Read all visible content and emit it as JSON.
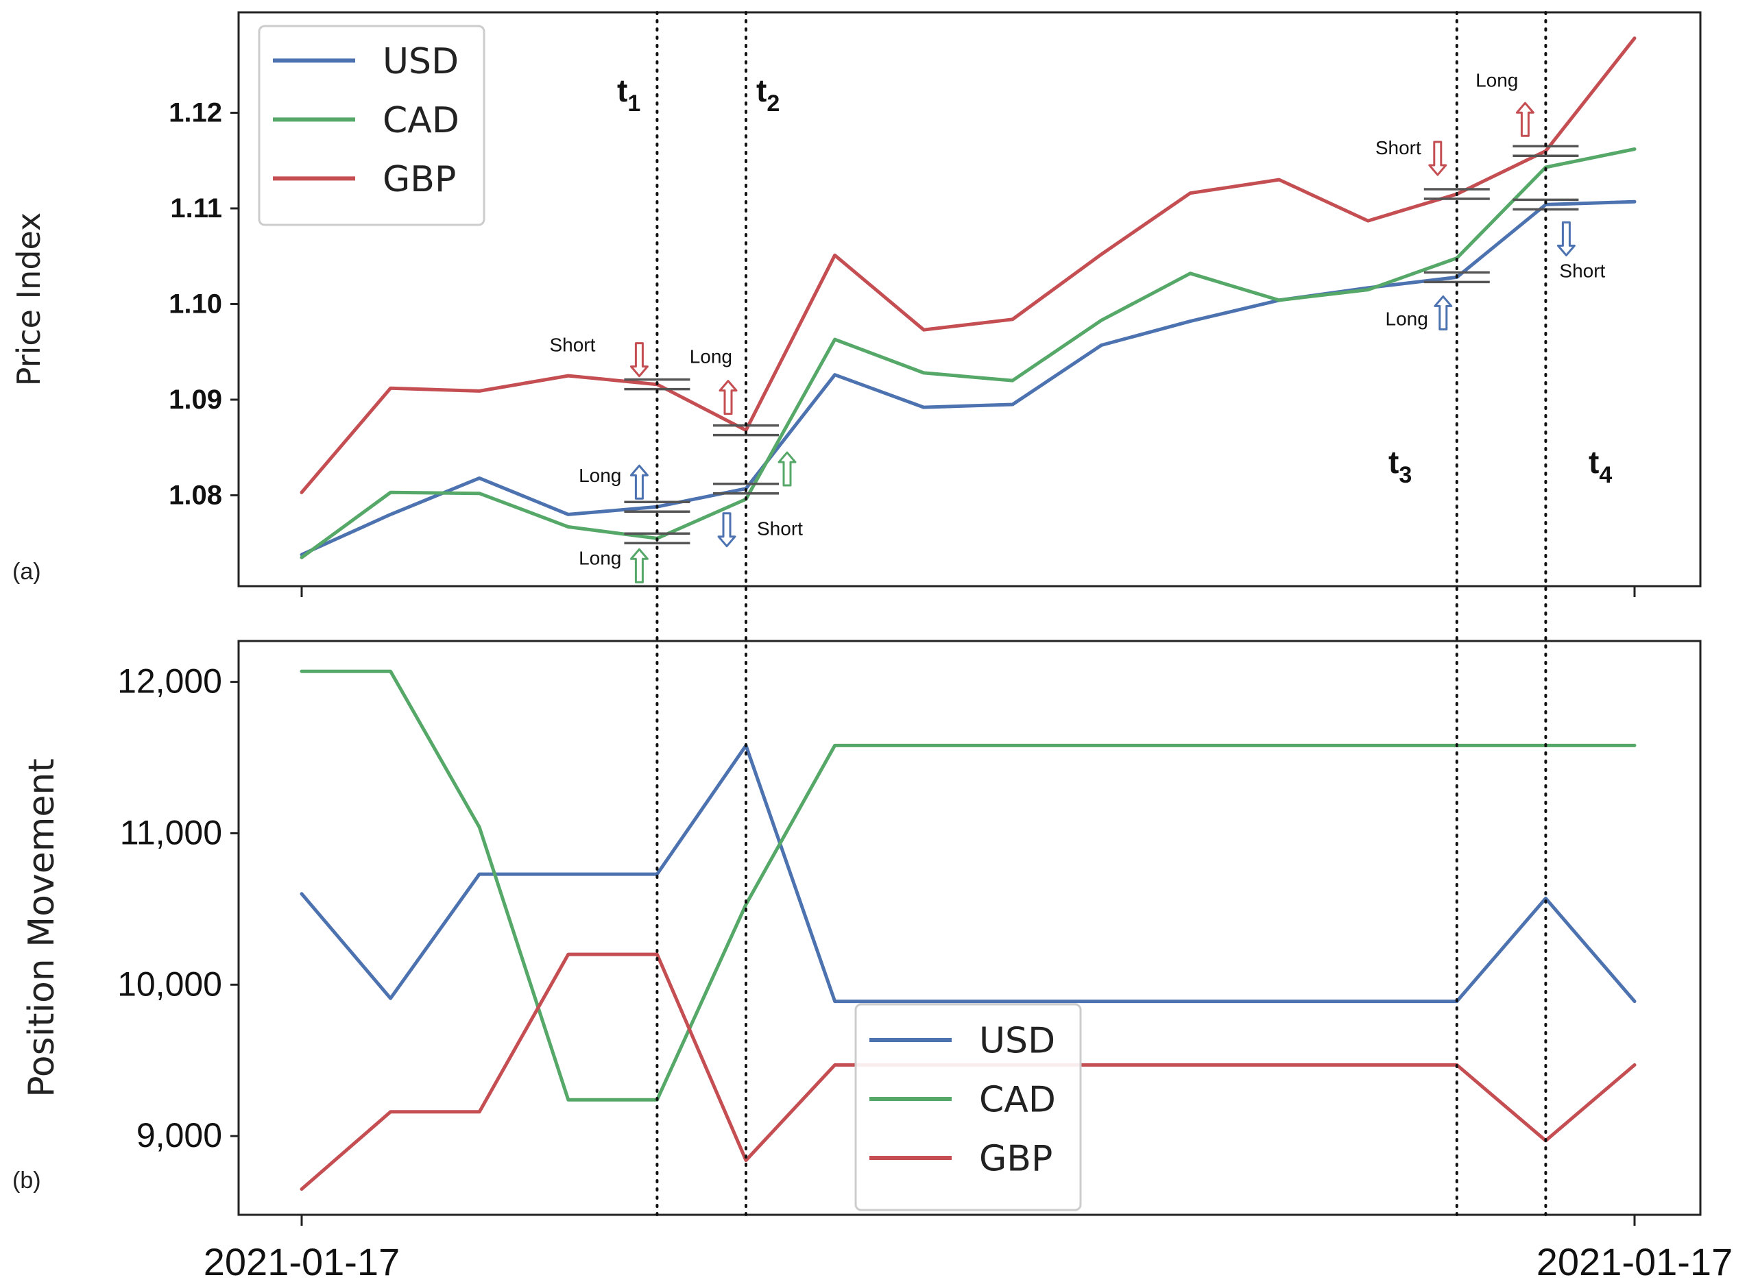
{
  "chart_data": [
    {
      "panel": "(a)",
      "type": "line",
      "title": "",
      "xlabel": "",
      "ylabel": "Price Index",
      "x": [
        0,
        1,
        2,
        3,
        4,
        5,
        6,
        7,
        8,
        9,
        10,
        11,
        12,
        13,
        14,
        15
      ],
      "ylim": [
        1.0705,
        1.1305
      ],
      "yticks": [
        1.08,
        1.09,
        1.1,
        1.11,
        1.12
      ],
      "ytick_labels": [
        "1.08",
        "1.09",
        "1.10",
        "1.11",
        "1.12"
      ],
      "grid": false,
      "legend_position": "top-left",
      "series": [
        {
          "name": "USD",
          "color": "#4c72b0",
          "values": [
            1.0738,
            1.078,
            1.0818,
            1.078,
            1.0788,
            1.0807,
            1.0926,
            1.0892,
            1.0895,
            1.0957,
            1.0982,
            1.1004,
            1.1017,
            1.1028,
            1.1104,
            1.1107
          ]
        },
        {
          "name": "CAD",
          "color": "#55a868",
          "values": [
            1.0735,
            1.0803,
            1.0802,
            1.0767,
            1.0755,
            1.0796,
            1.0963,
            1.0928,
            1.092,
            1.0983,
            1.1032,
            1.1004,
            1.1015,
            1.1048,
            1.1143,
            1.1162
          ]
        },
        {
          "name": "GBP",
          "color": "#c44e52",
          "values": [
            1.0803,
            1.0912,
            1.0909,
            1.0925,
            1.0916,
            1.0868,
            1.1051,
            1.0973,
            1.0984,
            1.1052,
            1.1116,
            1.113,
            1.1087,
            1.1115,
            1.116,
            1.1278
          ]
        }
      ],
      "vlines": [
        {
          "x": 4,
          "label": "t",
          "sub": "1"
        },
        {
          "x": 5,
          "label": "t",
          "sub": "2"
        },
        {
          "x": 13,
          "label": "t",
          "sub": "3"
        },
        {
          "x": 14,
          "label": "t",
          "sub": "4"
        }
      ],
      "annotations": [
        {
          "text": "Short",
          "series": "GBP",
          "x": 4,
          "arrow": "down"
        },
        {
          "text": "Long",
          "series": "USD",
          "x": 4,
          "arrow": "up"
        },
        {
          "text": "Long",
          "series": "CAD",
          "x": 4,
          "arrow": "up"
        },
        {
          "text": "Long",
          "series": "GBP",
          "x": 5,
          "arrow": "up"
        },
        {
          "text": "",
          "series": "CAD",
          "x": 5,
          "arrow": "up"
        },
        {
          "text": "Short",
          "series": "USD",
          "x": 5,
          "arrow": "down"
        },
        {
          "text": "Short",
          "series": "GBP",
          "x": 13,
          "arrow": "down"
        },
        {
          "text": "Long",
          "series": "USD",
          "x": 13,
          "arrow": "up"
        },
        {
          "text": "Long",
          "series": "GBP",
          "x": 14,
          "arrow": "up"
        },
        {
          "text": "Short",
          "series": "USD",
          "x": 14,
          "arrow": "down"
        }
      ]
    },
    {
      "panel": "(b)",
      "type": "line",
      "title": "",
      "xlabel": "",
      "ylabel": "Position Movement",
      "x": [
        0,
        1,
        2,
        3,
        4,
        5,
        6,
        7,
        8,
        9,
        10,
        11,
        12,
        13,
        14,
        15
      ],
      "ylim": [
        8480,
        12270
      ],
      "yticks": [
        9000,
        10000,
        11000,
        12000
      ],
      "ytick_labels": [
        "9,000",
        "10,000",
        "11,000",
        "12,000"
      ],
      "xtick_labels": [
        "2021-01-17",
        "2021-01-17"
      ],
      "grid": false,
      "legend_position": "lower-center",
      "series": [
        {
          "name": "USD",
          "color": "#4c72b0",
          "values": [
            10600,
            9910,
            10730,
            10730,
            10730,
            11580,
            9890,
            9890,
            9890,
            9890,
            9890,
            9890,
            9890,
            9890,
            10570,
            9890
          ]
        },
        {
          "name": "CAD",
          "color": "#55a868",
          "values": [
            12070,
            12070,
            11040,
            9240,
            9240,
            10530,
            11580,
            11580,
            11580,
            11580,
            11580,
            11580,
            11580,
            11580,
            11580,
            11580
          ]
        },
        {
          "name": "GBP",
          "color": "#c44e52",
          "values": [
            8650,
            9160,
            9160,
            10200,
            10200,
            8840,
            9470,
            9470,
            9470,
            9470,
            9470,
            9470,
            9470,
            9470,
            8970,
            9470
          ]
        }
      ]
    }
  ]
}
